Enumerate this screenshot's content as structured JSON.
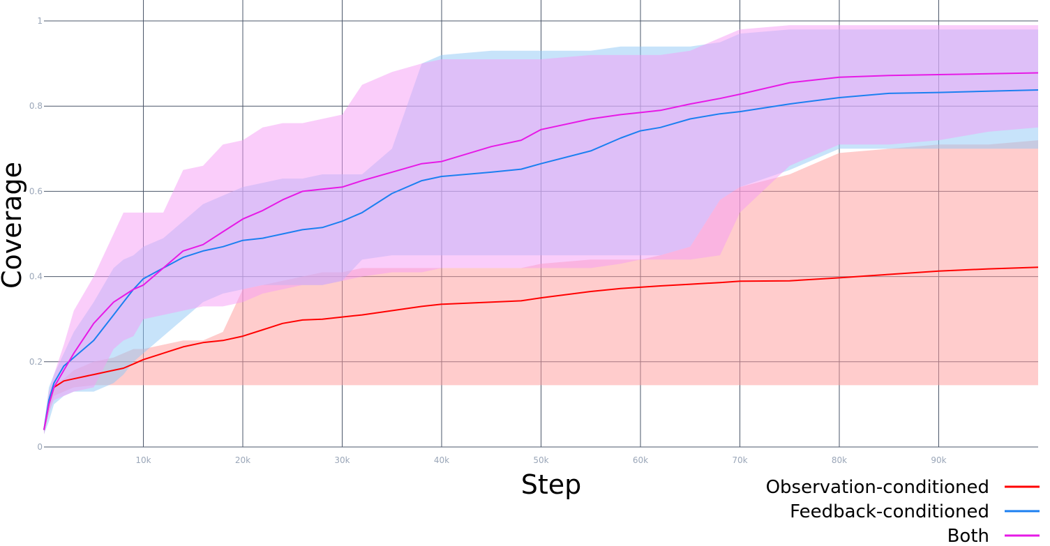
{
  "chart_data": {
    "type": "line",
    "title": "",
    "xlabel": "Step",
    "ylabel": "Coverage",
    "xlim": [
      0,
      100000
    ],
    "ylim": [
      0,
      1
    ],
    "grid": true,
    "legend_position": "bottom-right",
    "x_ticks": [
      {
        "value": 10000,
        "label": "10k"
      },
      {
        "value": 20000,
        "label": "20k"
      },
      {
        "value": 30000,
        "label": "30k"
      },
      {
        "value": 40000,
        "label": "40k"
      },
      {
        "value": 50000,
        "label": "50k"
      },
      {
        "value": 60000,
        "label": "60k"
      },
      {
        "value": 70000,
        "label": "70k"
      },
      {
        "value": 80000,
        "label": "80k"
      },
      {
        "value": 90000,
        "label": "90k"
      }
    ],
    "y_ticks": [
      {
        "value": 0,
        "label": "0"
      },
      {
        "value": 0.2,
        "label": "0.2"
      },
      {
        "value": 0.4,
        "label": "0.4"
      },
      {
        "value": 0.6,
        "label": "0.6"
      },
      {
        "value": 0.8,
        "label": "0.8"
      },
      {
        "value": 1,
        "label": "1"
      }
    ],
    "series": [
      {
        "name": "Observation-conditioned",
        "color": "#ff0000",
        "band_color": "#ff9a9a",
        "band_opacity": 0.5,
        "x": [
          0,
          500,
          1000,
          2000,
          3000,
          5000,
          7000,
          8000,
          9000,
          10000,
          12000,
          14000,
          16000,
          18000,
          20000,
          22000,
          24000,
          26000,
          28000,
          30000,
          32000,
          35000,
          38000,
          40000,
          45000,
          48000,
          50000,
          55000,
          58000,
          60000,
          62000,
          65000,
          68000,
          70000,
          75000,
          80000,
          85000,
          90000,
          95000,
          100000
        ],
        "mean": [
          0.04,
          0.1,
          0.14,
          0.155,
          0.16,
          0.17,
          0.18,
          0.185,
          0.195,
          0.205,
          0.22,
          0.235,
          0.245,
          0.25,
          0.26,
          0.275,
          0.29,
          0.298,
          0.3,
          0.305,
          0.31,
          0.32,
          0.33,
          0.335,
          0.34,
          0.343,
          0.35,
          0.365,
          0.372,
          0.375,
          0.378,
          0.382,
          0.386,
          0.389,
          0.39,
          0.397,
          0.405,
          0.413,
          0.418,
          0.422
        ],
        "lower": [
          0.03,
          0.08,
          0.12,
          0.13,
          0.14,
          0.145,
          0.145,
          0.145,
          0.145,
          0.145,
          0.145,
          0.145,
          0.145,
          0.145,
          0.145,
          0.145,
          0.145,
          0.145,
          0.145,
          0.145,
          0.145,
          0.145,
          0.145,
          0.145,
          0.145,
          0.145,
          0.145,
          0.145,
          0.145,
          0.145,
          0.145,
          0.145,
          0.145,
          0.145,
          0.145,
          0.145,
          0.145,
          0.145,
          0.145,
          0.145
        ],
        "upper": [
          0.05,
          0.12,
          0.15,
          0.16,
          0.18,
          0.2,
          0.21,
          0.22,
          0.23,
          0.23,
          0.24,
          0.25,
          0.25,
          0.27,
          0.37,
          0.38,
          0.39,
          0.4,
          0.41,
          0.41,
          0.42,
          0.42,
          0.42,
          0.42,
          0.42,
          0.42,
          0.43,
          0.44,
          0.44,
          0.44,
          0.45,
          0.47,
          0.58,
          0.61,
          0.64,
          0.69,
          0.7,
          0.71,
          0.71,
          0.72
        ]
      },
      {
        "name": "Feedback-conditioned",
        "color": "#1b7ff0",
        "band_color": "#8fc7f5",
        "band_opacity": 0.5,
        "x": [
          0,
          500,
          1000,
          2000,
          3000,
          5000,
          7000,
          8000,
          9000,
          10000,
          12000,
          14000,
          16000,
          18000,
          20000,
          22000,
          24000,
          26000,
          28000,
          30000,
          32000,
          35000,
          38000,
          40000,
          45000,
          48000,
          50000,
          55000,
          58000,
          60000,
          62000,
          65000,
          68000,
          70000,
          75000,
          80000,
          85000,
          90000,
          95000,
          100000
        ],
        "mean": [
          0.04,
          0.11,
          0.15,
          0.19,
          0.21,
          0.25,
          0.31,
          0.34,
          0.37,
          0.395,
          0.42,
          0.445,
          0.46,
          0.47,
          0.485,
          0.49,
          0.5,
          0.51,
          0.515,
          0.53,
          0.55,
          0.595,
          0.625,
          0.635,
          0.645,
          0.652,
          0.665,
          0.695,
          0.725,
          0.742,
          0.75,
          0.77,
          0.782,
          0.787,
          0.805,
          0.82,
          0.83,
          0.832,
          0.835,
          0.838
        ],
        "lower": [
          0.03,
          0.06,
          0.1,
          0.12,
          0.13,
          0.13,
          0.15,
          0.17,
          0.2,
          0.22,
          0.26,
          0.3,
          0.34,
          0.36,
          0.37,
          0.38,
          0.38,
          0.38,
          0.38,
          0.39,
          0.44,
          0.45,
          0.45,
          0.45,
          0.45,
          0.45,
          0.45,
          0.45,
          0.45,
          0.45,
          0.45,
          0.47,
          0.58,
          0.61,
          0.65,
          0.7,
          0.7,
          0.7,
          0.7,
          0.7
        ],
        "upper": [
          0.05,
          0.14,
          0.17,
          0.22,
          0.27,
          0.34,
          0.42,
          0.44,
          0.45,
          0.47,
          0.49,
          0.53,
          0.57,
          0.59,
          0.61,
          0.62,
          0.63,
          0.63,
          0.64,
          0.64,
          0.64,
          0.7,
          0.9,
          0.92,
          0.93,
          0.93,
          0.93,
          0.93,
          0.94,
          0.94,
          0.94,
          0.94,
          0.95,
          0.97,
          0.98,
          0.98,
          0.98,
          0.98,
          0.98,
          0.98
        ]
      },
      {
        "name": "Both",
        "color": "#e619e6",
        "band_color": "#f59cf5",
        "band_opacity": 0.5,
        "x": [
          0,
          500,
          1000,
          2000,
          3000,
          5000,
          7000,
          8000,
          9000,
          10000,
          12000,
          14000,
          16000,
          18000,
          20000,
          22000,
          24000,
          26000,
          28000,
          30000,
          32000,
          35000,
          38000,
          40000,
          45000,
          48000,
          50000,
          55000,
          58000,
          60000,
          62000,
          65000,
          68000,
          70000,
          75000,
          80000,
          85000,
          90000,
          95000,
          100000
        ],
        "mean": [
          0.04,
          0.1,
          0.14,
          0.18,
          0.22,
          0.29,
          0.34,
          0.355,
          0.37,
          0.38,
          0.42,
          0.46,
          0.475,
          0.505,
          0.535,
          0.555,
          0.58,
          0.6,
          0.605,
          0.61,
          0.625,
          0.645,
          0.665,
          0.67,
          0.705,
          0.72,
          0.745,
          0.77,
          0.78,
          0.785,
          0.79,
          0.805,
          0.818,
          0.828,
          0.855,
          0.868,
          0.872,
          0.874,
          0.876,
          0.878
        ],
        "lower": [
          0.03,
          0.08,
          0.11,
          0.12,
          0.13,
          0.14,
          0.23,
          0.25,
          0.26,
          0.3,
          0.31,
          0.32,
          0.33,
          0.33,
          0.34,
          0.36,
          0.37,
          0.38,
          0.38,
          0.39,
          0.4,
          0.41,
          0.41,
          0.42,
          0.42,
          0.42,
          0.42,
          0.42,
          0.43,
          0.44,
          0.44,
          0.44,
          0.45,
          0.55,
          0.66,
          0.71,
          0.71,
          0.72,
          0.74,
          0.75
        ],
        "upper": [
          0.05,
          0.13,
          0.17,
          0.24,
          0.32,
          0.4,
          0.5,
          0.55,
          0.55,
          0.55,
          0.55,
          0.65,
          0.66,
          0.71,
          0.72,
          0.75,
          0.76,
          0.76,
          0.77,
          0.78,
          0.85,
          0.88,
          0.9,
          0.91,
          0.91,
          0.91,
          0.91,
          0.92,
          0.92,
          0.92,
          0.92,
          0.93,
          0.96,
          0.98,
          0.99,
          0.99,
          0.99,
          0.99,
          0.99,
          0.99
        ]
      }
    ]
  }
}
